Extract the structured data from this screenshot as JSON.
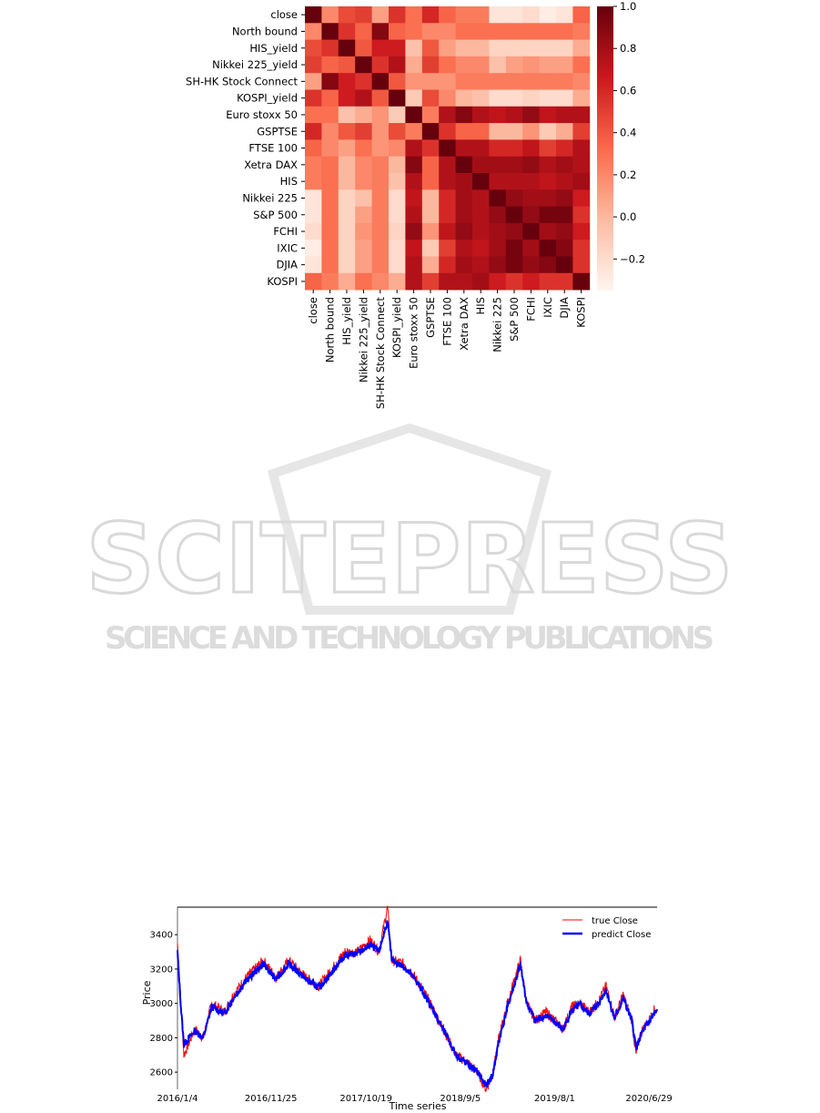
{
  "colors": {
    "heat_low": "#fff5f0",
    "heat_mid": "#ef3b2c",
    "heat_high": "#67000d",
    "true_line": "#ff0000",
    "predict_line": "#0000ff"
  },
  "watermark": {
    "brand": "SCITEPRESS",
    "tagline": "SCIENCE AND TECHNOLOGY PUBLICATIONS"
  },
  "chart_data": [
    {
      "type": "heatmap",
      "labels": [
        "close",
        "North bound",
        "HIS_yield",
        "Nikkei 225_yield",
        "SH-HK Stock Connect",
        "KOSPI_yield",
        "Euro stoxx 50",
        "GSPTSE",
        "FTSE 100",
        "Xetra DAX",
        "HIS",
        "Nikkei 225",
        "S&P 500",
        "FCHI",
        "IXIC",
        "DJIA",
        "KOSPI"
      ],
      "matrix": [
        [
          1.0,
          0.2,
          0.45,
          0.5,
          0.1,
          0.55,
          0.3,
          0.6,
          0.35,
          0.25,
          0.25,
          -0.25,
          -0.25,
          -0.2,
          -0.3,
          -0.25,
          0.35
        ],
        [
          0.2,
          1.0,
          0.55,
          0.35,
          0.9,
          0.35,
          0.3,
          0.2,
          0.2,
          0.3,
          0.3,
          0.3,
          0.3,
          0.3,
          0.3,
          0.3,
          0.25
        ],
        [
          0.45,
          0.55,
          1.0,
          0.4,
          0.65,
          0.65,
          -0.05,
          0.4,
          0.1,
          0.0,
          0.0,
          -0.15,
          -0.15,
          -0.15,
          -0.15,
          -0.15,
          0.05
        ],
        [
          0.5,
          0.35,
          0.4,
          1.0,
          0.55,
          0.75,
          0.05,
          0.5,
          0.3,
          0.2,
          0.2,
          -0.05,
          0.1,
          0.15,
          0.1,
          0.1,
          0.3
        ],
        [
          0.1,
          0.9,
          0.65,
          0.55,
          1.0,
          0.4,
          0.15,
          0.15,
          0.15,
          0.25,
          0.25,
          0.25,
          0.25,
          0.25,
          0.25,
          0.25,
          0.2
        ],
        [
          0.55,
          0.35,
          0.65,
          0.75,
          0.4,
          1.0,
          -0.1,
          0.45,
          0.2,
          0.0,
          -0.05,
          -0.2,
          -0.2,
          -0.15,
          -0.2,
          -0.2,
          0.05
        ],
        [
          0.3,
          0.3,
          -0.05,
          0.05,
          0.15,
          -0.1,
          1.0,
          0.25,
          0.75,
          0.9,
          0.75,
          0.7,
          0.75,
          0.85,
          0.7,
          0.75,
          0.75
        ],
        [
          0.6,
          0.2,
          0.4,
          0.5,
          0.15,
          0.45,
          0.25,
          1.0,
          0.55,
          0.35,
          0.35,
          0.0,
          0.0,
          0.15,
          -0.1,
          0.05,
          0.5
        ],
        [
          0.35,
          0.2,
          0.1,
          0.3,
          0.15,
          0.2,
          0.75,
          0.55,
          1.0,
          0.75,
          0.75,
          0.6,
          0.6,
          0.7,
          0.5,
          0.6,
          0.75
        ],
        [
          0.25,
          0.3,
          0.0,
          0.2,
          0.25,
          0.0,
          0.9,
          0.35,
          0.75,
          1.0,
          0.8,
          0.8,
          0.8,
          0.85,
          0.75,
          0.8,
          0.75
        ],
        [
          0.25,
          0.3,
          0.0,
          0.2,
          0.25,
          -0.05,
          0.75,
          0.35,
          0.75,
          0.8,
          1.0,
          0.75,
          0.75,
          0.75,
          0.7,
          0.75,
          0.8
        ],
        [
          -0.25,
          0.3,
          -0.15,
          -0.05,
          0.25,
          -0.2,
          0.7,
          0.0,
          0.6,
          0.8,
          0.75,
          1.0,
          0.85,
          0.8,
          0.8,
          0.85,
          0.65
        ],
        [
          -0.25,
          0.3,
          -0.15,
          0.1,
          0.25,
          -0.2,
          0.75,
          0.0,
          0.6,
          0.8,
          0.75,
          0.85,
          1.0,
          0.85,
          0.95,
          0.95,
          0.55
        ],
        [
          -0.2,
          0.3,
          -0.15,
          0.15,
          0.25,
          -0.15,
          0.85,
          0.15,
          0.7,
          0.85,
          0.75,
          0.8,
          0.85,
          1.0,
          0.8,
          0.85,
          0.65
        ],
        [
          -0.3,
          0.3,
          -0.15,
          0.1,
          0.25,
          -0.2,
          0.7,
          -0.1,
          0.5,
          0.75,
          0.7,
          0.8,
          0.95,
          0.8,
          1.0,
          0.9,
          0.55
        ],
        [
          -0.25,
          0.3,
          -0.15,
          0.1,
          0.25,
          -0.2,
          0.75,
          0.05,
          0.6,
          0.8,
          0.75,
          0.85,
          0.95,
          0.85,
          0.9,
          1.0,
          0.55
        ],
        [
          0.35,
          0.25,
          0.05,
          0.3,
          0.2,
          0.05,
          0.75,
          0.5,
          0.75,
          0.75,
          0.8,
          0.65,
          0.55,
          0.65,
          0.55,
          0.55,
          1.0
        ]
      ],
      "colorbar": {
        "min": -0.35,
        "max": 1.0,
        "ticks": [
          1.0,
          0.8,
          0.6,
          0.4,
          0.2,
          0.0,
          -0.2
        ],
        "tick_labels": [
          "1.0",
          "0.8",
          "0.6",
          "0.4",
          "0.2",
          "0.0",
          "−0.2"
        ]
      }
    },
    {
      "type": "line",
      "xlabel": "Time series",
      "ylabel": "Price",
      "ylim": [
        2500,
        3560
      ],
      "yticks": [
        2600,
        2800,
        3000,
        3200,
        3400
      ],
      "xtick_labels": [
        "2016/1/4",
        "2016/11/25",
        "2017/10/19",
        "2018/9/5",
        "2019/8/1",
        "2020/6/29"
      ],
      "xtick_index": [
        0,
        218,
        440,
        660,
        880,
        1100
      ],
      "legend": "top-right",
      "series": [
        {
          "name": "true Close",
          "keypoints": [
            [
              0,
              3350
            ],
            [
              8,
              3000
            ],
            [
              15,
              2700
            ],
            [
              40,
              2850
            ],
            [
              60,
              2800
            ],
            [
              80,
              3000
            ],
            [
              110,
              2950
            ],
            [
              130,
              3050
            ],
            [
              160,
              3150
            ],
            [
              200,
              3250
            ],
            [
              230,
              3150
            ],
            [
              260,
              3250
            ],
            [
              300,
              3150
            ],
            [
              330,
              3100
            ],
            [
              360,
              3200
            ],
            [
              390,
              3300
            ],
            [
              420,
              3300
            ],
            [
              450,
              3370
            ],
            [
              470,
              3300
            ],
            [
              490,
              3560
            ],
            [
              500,
              3250
            ],
            [
              530,
              3230
            ],
            [
              560,
              3130
            ],
            [
              590,
              3000
            ],
            [
              620,
              2850
            ],
            [
              650,
              2700
            ],
            [
              680,
              2650
            ],
            [
              700,
              2600
            ],
            [
              720,
              2500
            ],
            [
              735,
              2580
            ],
            [
              750,
              2800
            ],
            [
              770,
              3000
            ],
            [
              785,
              3130
            ],
            [
              800,
              3250
            ],
            [
              815,
              3000
            ],
            [
              835,
              2900
            ],
            [
              860,
              2950
            ],
            [
              880,
              2900
            ],
            [
              900,
              2850
            ],
            [
              920,
              2980
            ],
            [
              940,
              3000
            ],
            [
              960,
              2950
            ],
            [
              980,
              3000
            ],
            [
              1000,
              3100
            ],
            [
              1020,
              2920
            ],
            [
              1040,
              3050
            ],
            [
              1060,
              2900
            ],
            [
              1070,
              2700
            ],
            [
              1085,
              2850
            ],
            [
              1100,
              2900
            ],
            [
              1112,
              2960
            ],
            [
              1119,
              2960
            ]
          ]
        },
        {
          "name": "predict Close",
          "keypoints": [
            [
              0,
              3300
            ],
            [
              8,
              2980
            ],
            [
              15,
              2760
            ],
            [
              40,
              2840
            ],
            [
              60,
              2800
            ],
            [
              80,
              2980
            ],
            [
              110,
              2940
            ],
            [
              130,
              3030
            ],
            [
              160,
              3130
            ],
            [
              200,
              3230
            ],
            [
              230,
              3140
            ],
            [
              260,
              3230
            ],
            [
              300,
              3140
            ],
            [
              330,
              3090
            ],
            [
              360,
              3180
            ],
            [
              390,
              3280
            ],
            [
              420,
              3290
            ],
            [
              450,
              3340
            ],
            [
              470,
              3300
            ],
            [
              490,
              3480
            ],
            [
              500,
              3250
            ],
            [
              530,
              3210
            ],
            [
              560,
              3120
            ],
            [
              590,
              2990
            ],
            [
              620,
              2850
            ],
            [
              650,
              2700
            ],
            [
              680,
              2640
            ],
            [
              700,
              2600
            ],
            [
              720,
              2520
            ],
            [
              735,
              2580
            ],
            [
              750,
              2780
            ],
            [
              770,
              2980
            ],
            [
              785,
              3100
            ],
            [
              800,
              3220
            ],
            [
              815,
              3000
            ],
            [
              835,
              2900
            ],
            [
              860,
              2930
            ],
            [
              880,
              2890
            ],
            [
              900,
              2850
            ],
            [
              920,
              2960
            ],
            [
              940,
              2990
            ],
            [
              960,
              2940
            ],
            [
              980,
              2990
            ],
            [
              1000,
              3080
            ],
            [
              1020,
              2910
            ],
            [
              1040,
              3030
            ],
            [
              1060,
              2900
            ],
            [
              1070,
              2740
            ],
            [
              1085,
              2840
            ],
            [
              1100,
              2890
            ],
            [
              1112,
              2940
            ],
            [
              1119,
              2950
            ]
          ]
        }
      ]
    }
  ]
}
